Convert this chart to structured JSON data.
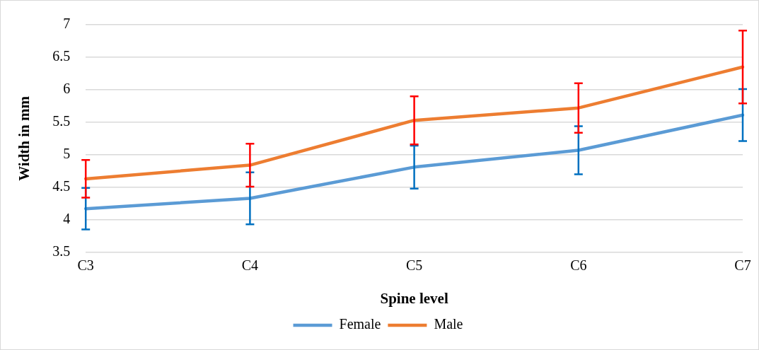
{
  "chart_data": {
    "type": "line",
    "xlabel": "Spine level",
    "ylabel": "Width in mm",
    "categories": [
      "C3",
      "C4",
      "C5",
      "C6",
      "C7"
    ],
    "series": [
      {
        "name": "Female",
        "color": "#5b9bd5",
        "values": [
          4.17,
          4.33,
          4.81,
          5.07,
          5.61
        ],
        "errors": [
          0.32,
          0.4,
          0.33,
          0.37,
          0.4
        ]
      },
      {
        "name": "Male",
        "color": "#ed7d31",
        "values": [
          4.63,
          4.84,
          5.53,
          5.72,
          6.35
        ],
        "errors": [
          0.29,
          0.33,
          0.37,
          0.38,
          0.56
        ]
      }
    ],
    "ylim": [
      3.5,
      7
    ],
    "yticks": [
      3.5,
      4,
      4.5,
      5,
      5.5,
      6,
      6.5,
      7
    ],
    "grid": "y",
    "legend": "bottom",
    "marker": "none",
    "line_style": "solid"
  }
}
